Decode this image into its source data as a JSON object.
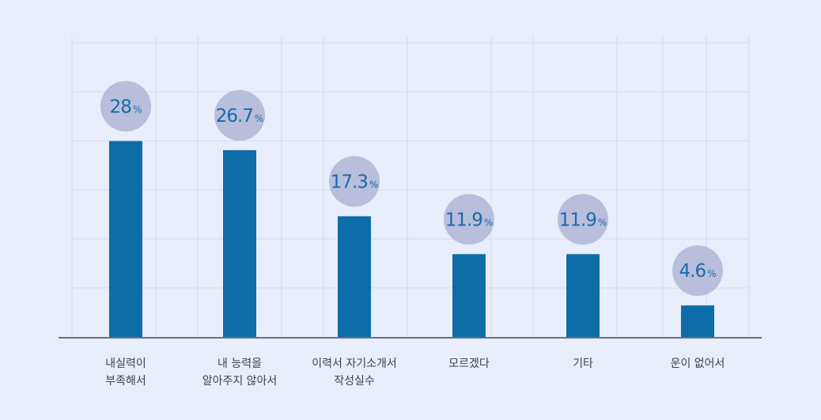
{
  "chart_data": {
    "type": "bar",
    "categories": [
      [
        "내실력이",
        "부족해서"
      ],
      [
        "내 능력을",
        "알아주지 않아서"
      ],
      [
        "이력서 자기소개서",
        "작성실수"
      ],
      [
        "모르겠다"
      ],
      [
        "기타"
      ],
      [
        "운이 없어서"
      ]
    ],
    "values": [
      28,
      26.7,
      17.3,
      11.9,
      11.9,
      4.6
    ],
    "value_labels": [
      "28",
      "26.7",
      "17.3",
      "11.9",
      "11.9",
      "4.6"
    ],
    "unit": "%",
    "ylim": [
      0,
      42
    ],
    "grid": true,
    "colors": {
      "bar": "#0e6ca8",
      "bubble": "#b8bedb",
      "value_text": "#1a6aa8",
      "grid": "#d3d9e8",
      "axis": "#6b7080",
      "background": "#e8eefb"
    }
  }
}
